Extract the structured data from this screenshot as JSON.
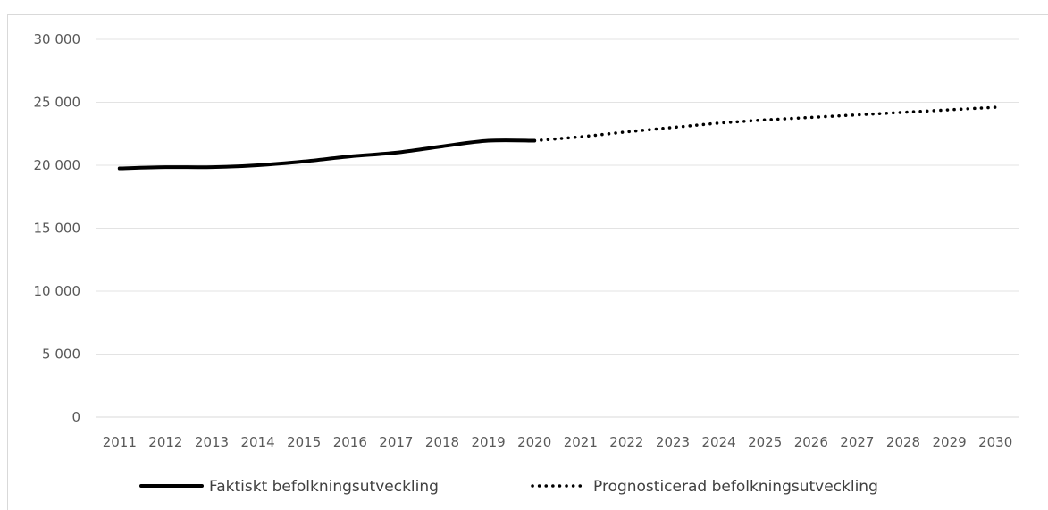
{
  "chart_data": {
    "type": "line",
    "title": "",
    "xlabel": "",
    "ylabel": "",
    "categories": [
      "2011",
      "2012",
      "2013",
      "2014",
      "2015",
      "2016",
      "2017",
      "2018",
      "2019",
      "2020",
      "2021",
      "2022",
      "2023",
      "2024",
      "2025",
      "2026",
      "2027",
      "2028",
      "2029",
      "2030"
    ],
    "ylim": [
      0,
      30000
    ],
    "y_ticks": [
      0,
      5000,
      10000,
      15000,
      20000,
      25000,
      30000
    ],
    "y_tick_labels": [
      "0",
      "5 000",
      "10 000",
      "15 000",
      "20 000",
      "25 000",
      "30 000"
    ],
    "grid": true,
    "legend_position": "bottom",
    "series": [
      {
        "name": "Faktiskt befolkningsutveckling",
        "style": "solid",
        "color": "#000000",
        "x": [
          "2011",
          "2012",
          "2013",
          "2014",
          "2015",
          "2016",
          "2017",
          "2018",
          "2019",
          "2020"
        ],
        "values": [
          19750,
          19850,
          19850,
          20000,
          20300,
          20700,
          21000,
          21500,
          21950,
          21950
        ]
      },
      {
        "name": "Prognosticerad befolkningsutveckling",
        "style": "dotted",
        "color": "#000000",
        "x": [
          "2020",
          "2021",
          "2022",
          "2023",
          "2024",
          "2025",
          "2026",
          "2027",
          "2028",
          "2029",
          "2030"
        ],
        "values": [
          21950,
          22250,
          22650,
          23000,
          23350,
          23600,
          23800,
          24000,
          24200,
          24400,
          24600
        ]
      }
    ]
  }
}
